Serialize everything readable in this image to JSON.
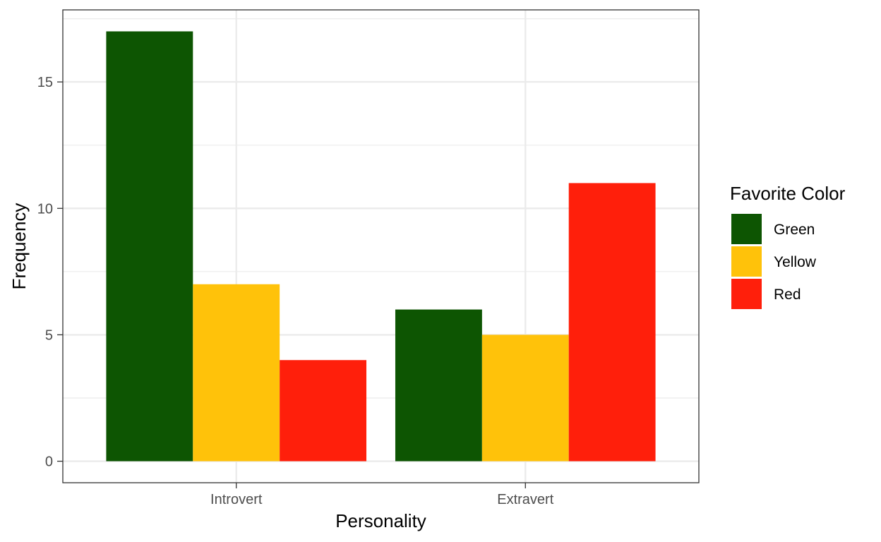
{
  "chart_data": {
    "type": "bar",
    "categories": [
      "Introvert",
      "Extravert"
    ],
    "series": [
      {
        "name": "Green",
        "color": "#0d5502",
        "values": [
          17,
          6
        ]
      },
      {
        "name": "Yellow",
        "color": "#ffc20a",
        "values": [
          7,
          5
        ]
      },
      {
        "name": "Red",
        "color": "#ff1f0b",
        "values": [
          4,
          11
        ]
      }
    ],
    "xlabel": "Personality",
    "ylabel": "Frequency",
    "ylim": [
      -0.85,
      17.85
    ],
    "yticks": [
      0,
      5,
      10,
      15
    ],
    "ytick_labels": [
      "0",
      "5",
      "10",
      "15"
    ],
    "legend": {
      "title": "Favorite Color",
      "position": "right"
    },
    "grid": true
  }
}
